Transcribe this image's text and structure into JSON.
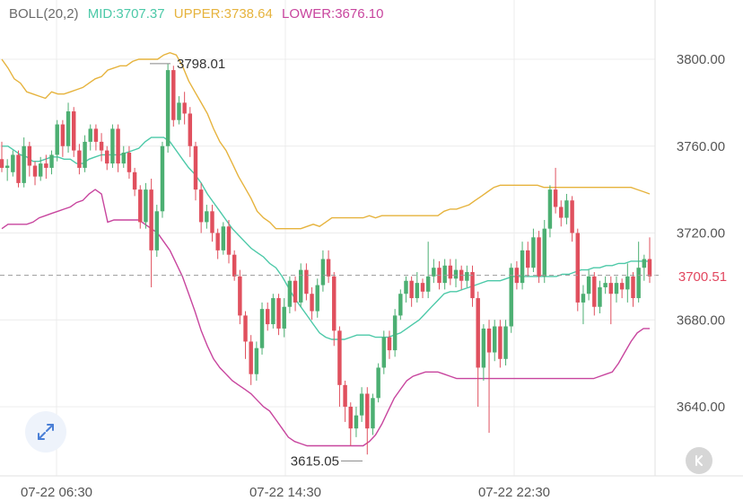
{
  "legend": {
    "name": "BOLL(20,2)",
    "mid_label": "MID:3707.37",
    "upper_label": "UPPER:3738.64",
    "lower_label": "LOWER:3676.10"
  },
  "colors": {
    "up": "#4caf72",
    "down": "#e0505e",
    "mid": "#4cc9a8",
    "upper": "#e6b33d",
    "lower": "#c8459e",
    "grid": "#ececec",
    "axis_text": "#555555",
    "legend_name": "#6b6b6b"
  },
  "current_price": "3700.51",
  "controls": {
    "expand_icon": "expand-arrows-icon",
    "back_icon": "k-back-icon"
  },
  "chart_data": {
    "type": "candlestick",
    "title": "",
    "indicator": "BOLL(20,2)",
    "ylim": [
      3620,
      3815
    ],
    "y_ticks": [
      "3800.00",
      "3760.00",
      "3720.00",
      "3680.00",
      "3640.00"
    ],
    "x_ticks": [
      "07-22 06:30",
      "07-22 14:30",
      "07-22 22:30"
    ],
    "grid": true,
    "current_price": 3700.51,
    "high_annotation": {
      "value": "3798.01"
    },
    "low_annotation": {
      "value": "3615.05"
    },
    "candles": [
      [
        3754,
        3750,
        3762,
        3748
      ],
      [
        3750,
        3751,
        3754,
        3744
      ],
      [
        3748,
        3756,
        3758,
        3746
      ],
      [
        3756,
        3743,
        3758,
        3741
      ],
      [
        3743,
        3760,
        3764,
        3741
      ],
      [
        3760,
        3751,
        3762,
        3746
      ],
      [
        3751,
        3746,
        3753,
        3742
      ],
      [
        3746,
        3752,
        3755,
        3744
      ],
      [
        3752,
        3750,
        3756,
        3745
      ],
      [
        3750,
        3756,
        3758,
        3747
      ],
      [
        3756,
        3770,
        3772,
        3753
      ],
      [
        3770,
        3760,
        3772,
        3755
      ],
      [
        3760,
        3776,
        3780,
        3757
      ],
      [
        3776,
        3758,
        3778,
        3755
      ],
      [
        3758,
        3750,
        3761,
        3747
      ],
      [
        3750,
        3762,
        3765,
        3748
      ],
      [
        3762,
        3768,
        3770,
        3758
      ],
      [
        3768,
        3762,
        3770,
        3758
      ],
      [
        3762,
        3758,
        3766,
        3753
      ],
      [
        3758,
        3752,
        3760,
        3749
      ],
      [
        3752,
        3768,
        3770,
        3750
      ],
      [
        3768,
        3752,
        3770,
        3748
      ],
      [
        3752,
        3757,
        3760,
        3750
      ],
      [
        3757,
        3748,
        3760,
        3745
      ],
      [
        3748,
        3740,
        3750,
        3737
      ],
      [
        3740,
        3725,
        3742,
        3722
      ],
      [
        3725,
        3740,
        3743,
        3722
      ],
      [
        3740,
        3712,
        3745,
        3695
      ],
      [
        3712,
        3730,
        3733,
        3709
      ],
      [
        3730,
        3760,
        3762,
        3727
      ],
      [
        3760,
        3795,
        3798,
        3757
      ],
      [
        3795,
        3772,
        3797,
        3769
      ],
      [
        3772,
        3780,
        3783,
        3770
      ],
      [
        3780,
        3775,
        3785,
        3770
      ],
      [
        3775,
        3760,
        3778,
        3755
      ],
      [
        3760,
        3740,
        3762,
        3735
      ],
      [
        3740,
        3725,
        3743,
        3720
      ],
      [
        3725,
        3730,
        3733,
        3722
      ],
      [
        3730,
        3720,
        3733,
        3716
      ],
      [
        3720,
        3712,
        3722,
        3708
      ],
      [
        3712,
        3723,
        3725,
        3710
      ],
      [
        3723,
        3710,
        3726,
        3706
      ],
      [
        3710,
        3700,
        3712,
        3698
      ],
      [
        3700,
        3682,
        3703,
        3678
      ],
      [
        3682,
        3670,
        3684,
        3662
      ],
      [
        3670,
        3655,
        3673,
        3650
      ],
      [
        3655,
        3667,
        3670,
        3652
      ],
      [
        3667,
        3685,
        3688,
        3664
      ],
      [
        3685,
        3678,
        3688,
        3675
      ],
      [
        3678,
        3690,
        3692,
        3676
      ],
      [
        3690,
        3676,
        3692,
        3673
      ],
      [
        3676,
        3686,
        3690,
        3672
      ],
      [
        3686,
        3698,
        3700,
        3683
      ],
      [
        3698,
        3688,
        3700,
        3684
      ],
      [
        3688,
        3703,
        3706,
        3686
      ],
      [
        3703,
        3692,
        3706,
        3689
      ],
      [
        3692,
        3684,
        3695,
        3680
      ],
      [
        3684,
        3696,
        3699,
        3681
      ],
      [
        3696,
        3708,
        3712,
        3693
      ],
      [
        3708,
        3700,
        3712,
        3697
      ],
      [
        3700,
        3675,
        3702,
        3668
      ],
      [
        3675,
        3650,
        3677,
        3640
      ],
      [
        3650,
        3640,
        3652,
        3633
      ],
      [
        3640,
        3630,
        3642,
        3622
      ],
      [
        3630,
        3636,
        3640,
        3626
      ],
      [
        3636,
        3646,
        3649,
        3633
      ],
      [
        3646,
        3630,
        3649,
        3618
      ],
      [
        3630,
        3644,
        3646,
        3627
      ],
      [
        3644,
        3658,
        3660,
        3642
      ],
      [
        3658,
        3672,
        3675,
        3655
      ],
      [
        3672,
        3666,
        3675,
        3662
      ],
      [
        3666,
        3682,
        3685,
        3663
      ],
      [
        3682,
        3692,
        3694,
        3680
      ],
      [
        3692,
        3698,
        3700,
        3688
      ],
      [
        3698,
        3690,
        3700,
        3686
      ],
      [
        3690,
        3697,
        3702,
        3688
      ],
      [
        3697,
        3693,
        3699,
        3690
      ],
      [
        3693,
        3700,
        3716,
        3690
      ],
      [
        3700,
        3704,
        3708,
        3697
      ],
      [
        3704,
        3697,
        3707,
        3694
      ],
      [
        3697,
        3705,
        3708,
        3694
      ],
      [
        3705,
        3699,
        3708,
        3696
      ],
      [
        3699,
        3703,
        3708,
        3695
      ],
      [
        3703,
        3698,
        3705,
        3694
      ],
      [
        3698,
        3702,
        3705,
        3695
      ],
      [
        3702,
        3690,
        3705,
        3686
      ],
      [
        3690,
        3658,
        3693,
        3640
      ],
      [
        3658,
        3676,
        3678,
        3652
      ],
      [
        3676,
        3665,
        3680,
        3628
      ],
      [
        3665,
        3677,
        3680,
        3661
      ],
      [
        3677,
        3662,
        3680,
        3658
      ],
      [
        3662,
        3677,
        3680,
        3659
      ],
      [
        3677,
        3704,
        3706,
        3674
      ],
      [
        3704,
        3697,
        3707,
        3694
      ],
      [
        3697,
        3712,
        3716,
        3694
      ],
      [
        3712,
        3704,
        3716,
        3700
      ],
      [
        3704,
        3718,
        3722,
        3702
      ],
      [
        3718,
        3700,
        3721,
        3697
      ],
      [
        3700,
        3722,
        3726,
        3697
      ],
      [
        3722,
        3740,
        3742,
        3718
      ],
      [
        3740,
        3732,
        3750,
        3729
      ],
      [
        3732,
        3727,
        3735,
        3723
      ],
      [
        3727,
        3735,
        3738,
        3724
      ],
      [
        3735,
        3720,
        3737,
        3716
      ],
      [
        3720,
        3688,
        3722,
        3684
      ],
      [
        3688,
        3692,
        3696,
        3678
      ],
      [
        3692,
        3700,
        3703,
        3689
      ],
      [
        3700,
        3686,
        3702,
        3682
      ],
      [
        3686,
        3695,
        3698,
        3683
      ],
      [
        3695,
        3697,
        3700,
        3692
      ],
      [
        3697,
        3692,
        3700,
        3678
      ],
      [
        3692,
        3697,
        3700,
        3688
      ],
      [
        3697,
        3694,
        3699,
        3690
      ],
      [
        3694,
        3700,
        3706,
        3688
      ],
      [
        3700,
        3690,
        3702,
        3686
      ],
      [
        3690,
        3704,
        3716,
        3688
      ],
      [
        3704,
        3708,
        3710,
        3698
      ],
      [
        3708,
        3700,
        3718,
        3697
      ]
    ],
    "series": [
      {
        "name": "MID",
        "values": [
          3760,
          3760,
          3758,
          3756,
          3755,
          3753,
          3753,
          3754,
          3755,
          3755,
          3754,
          3754,
          3752,
          3752,
          3754,
          3755,
          3756,
          3756,
          3756,
          3756,
          3757,
          3758,
          3759,
          3762,
          3764,
          3764,
          3764,
          3762,
          3758,
          3754,
          3750,
          3747,
          3743,
          3738,
          3734,
          3730,
          3726,
          3722,
          3719,
          3716,
          3713,
          3711,
          3709,
          3706,
          3704,
          3700,
          3695,
          3690,
          3686,
          3682,
          3678,
          3674,
          3672,
          3671,
          3671,
          3671,
          3672,
          3673,
          3673,
          3673,
          3672,
          3672,
          3672,
          3673,
          3674,
          3676,
          3678,
          3680,
          3683,
          3686,
          3689,
          3692,
          3693,
          3693,
          3694,
          3695,
          3696,
          3697,
          3698,
          3698,
          3698,
          3699,
          3700,
          3700,
          3700,
          3700,
          3700,
          3700,
          3700,
          3700,
          3701,
          3701,
          3702,
          3703,
          3703,
          3704,
          3704,
          3705,
          3705,
          3706,
          3706,
          3707,
          3707,
          3707,
          3707
        ]
      },
      {
        "name": "UPPER",
        "values": [
          3800,
          3796,
          3791,
          3789,
          3785,
          3784,
          3783,
          3782,
          3785,
          3784,
          3784,
          3785,
          3786,
          3787,
          3789,
          3791,
          3792,
          3795,
          3796,
          3797,
          3797,
          3799,
          3800,
          3800,
          3800,
          3800,
          3802,
          3803,
          3802,
          3797,
          3790,
          3785,
          3780,
          3775,
          3768,
          3762,
          3758,
          3752,
          3746,
          3741,
          3736,
          3730,
          3727,
          3725,
          3722,
          3722,
          3722,
          3722,
          3722,
          3723,
          3724,
          3723,
          3725,
          3727,
          3727,
          3727,
          3727,
          3727,
          3727,
          3728,
          3727,
          3728,
          3728,
          3728,
          3728,
          3728,
          3728,
          3728,
          3728,
          3728,
          3728,
          3730,
          3731,
          3731,
          3732,
          3733,
          3735,
          3737,
          3739,
          3741,
          3742,
          3742,
          3742,
          3742,
          3742,
          3742,
          3742,
          3741,
          3741,
          3741,
          3741,
          3741,
          3741,
          3741,
          3741,
          3741,
          3741,
          3741,
          3741,
          3741,
          3741,
          3741,
          3740,
          3739,
          3738
        ]
      },
      {
        "name": "LOWER",
        "values": [
          3722,
          3724,
          3724,
          3724,
          3724,
          3725,
          3727,
          3728,
          3729,
          3730,
          3731,
          3732,
          3734,
          3735,
          3738,
          3740,
          3738,
          3725,
          3726,
          3726,
          3726,
          3726,
          3726,
          3724,
          3722,
          3720,
          3716,
          3712,
          3706,
          3700,
          3692,
          3684,
          3675,
          3668,
          3662,
          3658,
          3655,
          3652,
          3650,
          3648,
          3646,
          3643,
          3640,
          3638,
          3634,
          3630,
          3626,
          3624,
          3623,
          3622,
          3622,
          3622,
          3622,
          3622,
          3622,
          3622,
          3622,
          3622,
          3622,
          3624,
          3627,
          3632,
          3638,
          3644,
          3648,
          3652,
          3654,
          3655,
          3656,
          3656,
          3656,
          3655,
          3654,
          3653,
          3653,
          3653,
          3653,
          3653,
          3653,
          3653,
          3653,
          3653,
          3653,
          3653,
          3653,
          3653,
          3653,
          3653,
          3653,
          3653,
          3653,
          3653,
          3653,
          3653,
          3653,
          3653,
          3654,
          3655,
          3656,
          3660,
          3665,
          3670,
          3674,
          3676,
          3676
        ]
      }
    ]
  }
}
